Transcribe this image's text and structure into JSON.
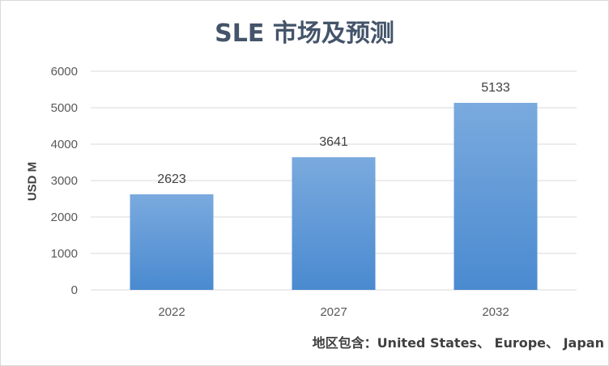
{
  "chart_data": {
    "type": "bar",
    "title": "SLE 市场及预测",
    "ylabel": "USD M",
    "xlabel": "",
    "categories": [
      "2022",
      "2027",
      "2032"
    ],
    "values": [
      2623,
      3641,
      5133
    ],
    "data_labels": [
      "2623",
      "3641",
      "5133"
    ],
    "ylim": [
      0,
      6000
    ],
    "yticks": [
      "0",
      "1000",
      "2000",
      "3000",
      "4000",
      "5000",
      "6000"
    ],
    "grid": true,
    "legend": "none",
    "bar_color_top": "#7aaade",
    "bar_color_bottom": "#4a8ad0"
  },
  "footnote": "地区包含：United States、 Europe、 Japan"
}
